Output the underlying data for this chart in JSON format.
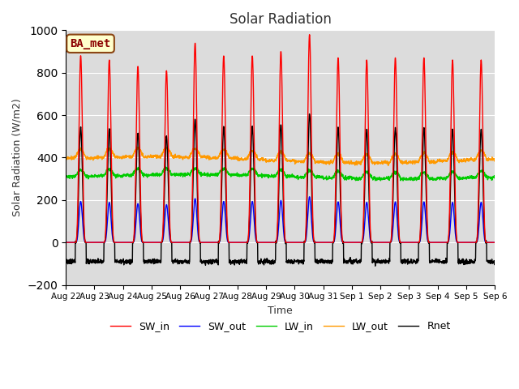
{
  "title": "Solar Radiation",
  "ylabel": "Solar Radiation (W/m2)",
  "xlabel": "Time",
  "ylim": [
    -200,
    1000
  ],
  "label_text": "BA_met",
  "bg_color": "#dcdcdc",
  "legend": [
    "SW_in",
    "SW_out",
    "LW_in",
    "LW_out",
    "Rnet"
  ],
  "line_colors": [
    "#ff0000",
    "#0000ff",
    "#00cc00",
    "#ff9900",
    "#000000"
  ],
  "xtick_labels": [
    "Aug 22",
    "Aug 23",
    "Aug 24",
    "Aug 25",
    "Aug 26",
    "Aug 27",
    "Aug 28",
    "Aug 29",
    "Aug 30",
    "Aug 31",
    "Sep 1",
    "Sep 2",
    "Sep 3",
    "Sep 4",
    "Sep 5",
    "Sep 6"
  ]
}
